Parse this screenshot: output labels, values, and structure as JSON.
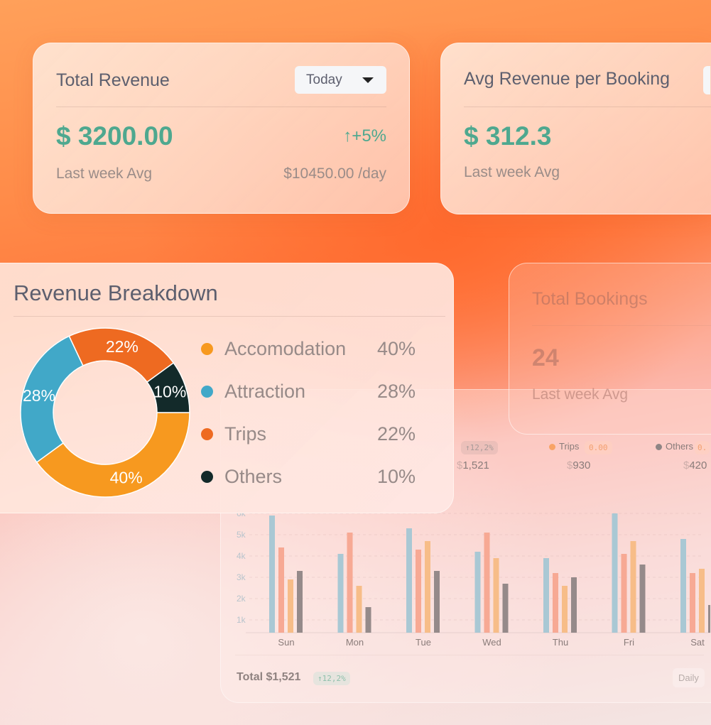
{
  "total_revenue": {
    "title": "Total Revenue",
    "period": "Today",
    "value": "$ 3200.00",
    "change": "+5%",
    "sub_label": "Last week Avg",
    "sub_value": "$10450.00 /day"
  },
  "avg_revenue": {
    "title": "Avg Revenue per Booking",
    "value": "$ 312.3",
    "sub_label": "Last week Avg"
  },
  "total_bookings": {
    "title": "Total Bookings",
    "value": "24",
    "sub_label": "Last week Avg"
  },
  "breakdown": {
    "title": "Revenue Breakdown",
    "items": [
      {
        "label": "Accomodation",
        "pct": "40%",
        "value": 40,
        "color": "#F7991F"
      },
      {
        "label": "Attraction",
        "pct": "28%",
        "value": 28,
        "color": "#41A8C8"
      },
      {
        "label": "Trips",
        "pct": "22%",
        "value": 22,
        "color": "#EE6A21"
      },
      {
        "label": "Others",
        "pct": "10%",
        "value": 10,
        "color": "#132A2A"
      }
    ]
  },
  "weekly": {
    "legend": [
      {
        "label": "",
        "badge": "↑12,2%",
        "value_prefix": "$",
        "value": "1,521"
      },
      {
        "label": "Trips",
        "badge": "0.00",
        "value_prefix": "$",
        "value": "930",
        "color": "#F8A366"
      },
      {
        "label": "Others",
        "badge": "0.",
        "value_prefix": "$",
        "value": "420",
        "color": "#8f8585"
      }
    ],
    "total_label": "Total $1,521",
    "total_badge": "↑12,2%",
    "period": "Daily"
  },
  "chart_data": {
    "type": "bar",
    "categories": [
      "Sun",
      "Mon",
      "Tue",
      "Wed",
      "Thu",
      "Fri",
      "Sat"
    ],
    "yticks": [
      "1k",
      "2k",
      "3k",
      "4k",
      "5k",
      "6k"
    ],
    "ylim": [
      0.4,
      6.2
    ],
    "series": [
      {
        "color": "#a9c8d4",
        "values": [
          5.9,
          4.1,
          5.3,
          4.2,
          3.9,
          6.0,
          4.8
        ]
      },
      {
        "color": "#f7a994",
        "values": [
          4.4,
          5.1,
          4.3,
          5.1,
          3.2,
          4.1,
          3.2
        ]
      },
      {
        "color": "#f7bd88",
        "values": [
          2.9,
          2.6,
          4.7,
          3.9,
          2.6,
          4.7,
          3.4
        ]
      },
      {
        "color": "#958a8a",
        "values": [
          3.3,
          1.6,
          3.3,
          2.7,
          3.0,
          3.6,
          1.7
        ]
      }
    ]
  }
}
